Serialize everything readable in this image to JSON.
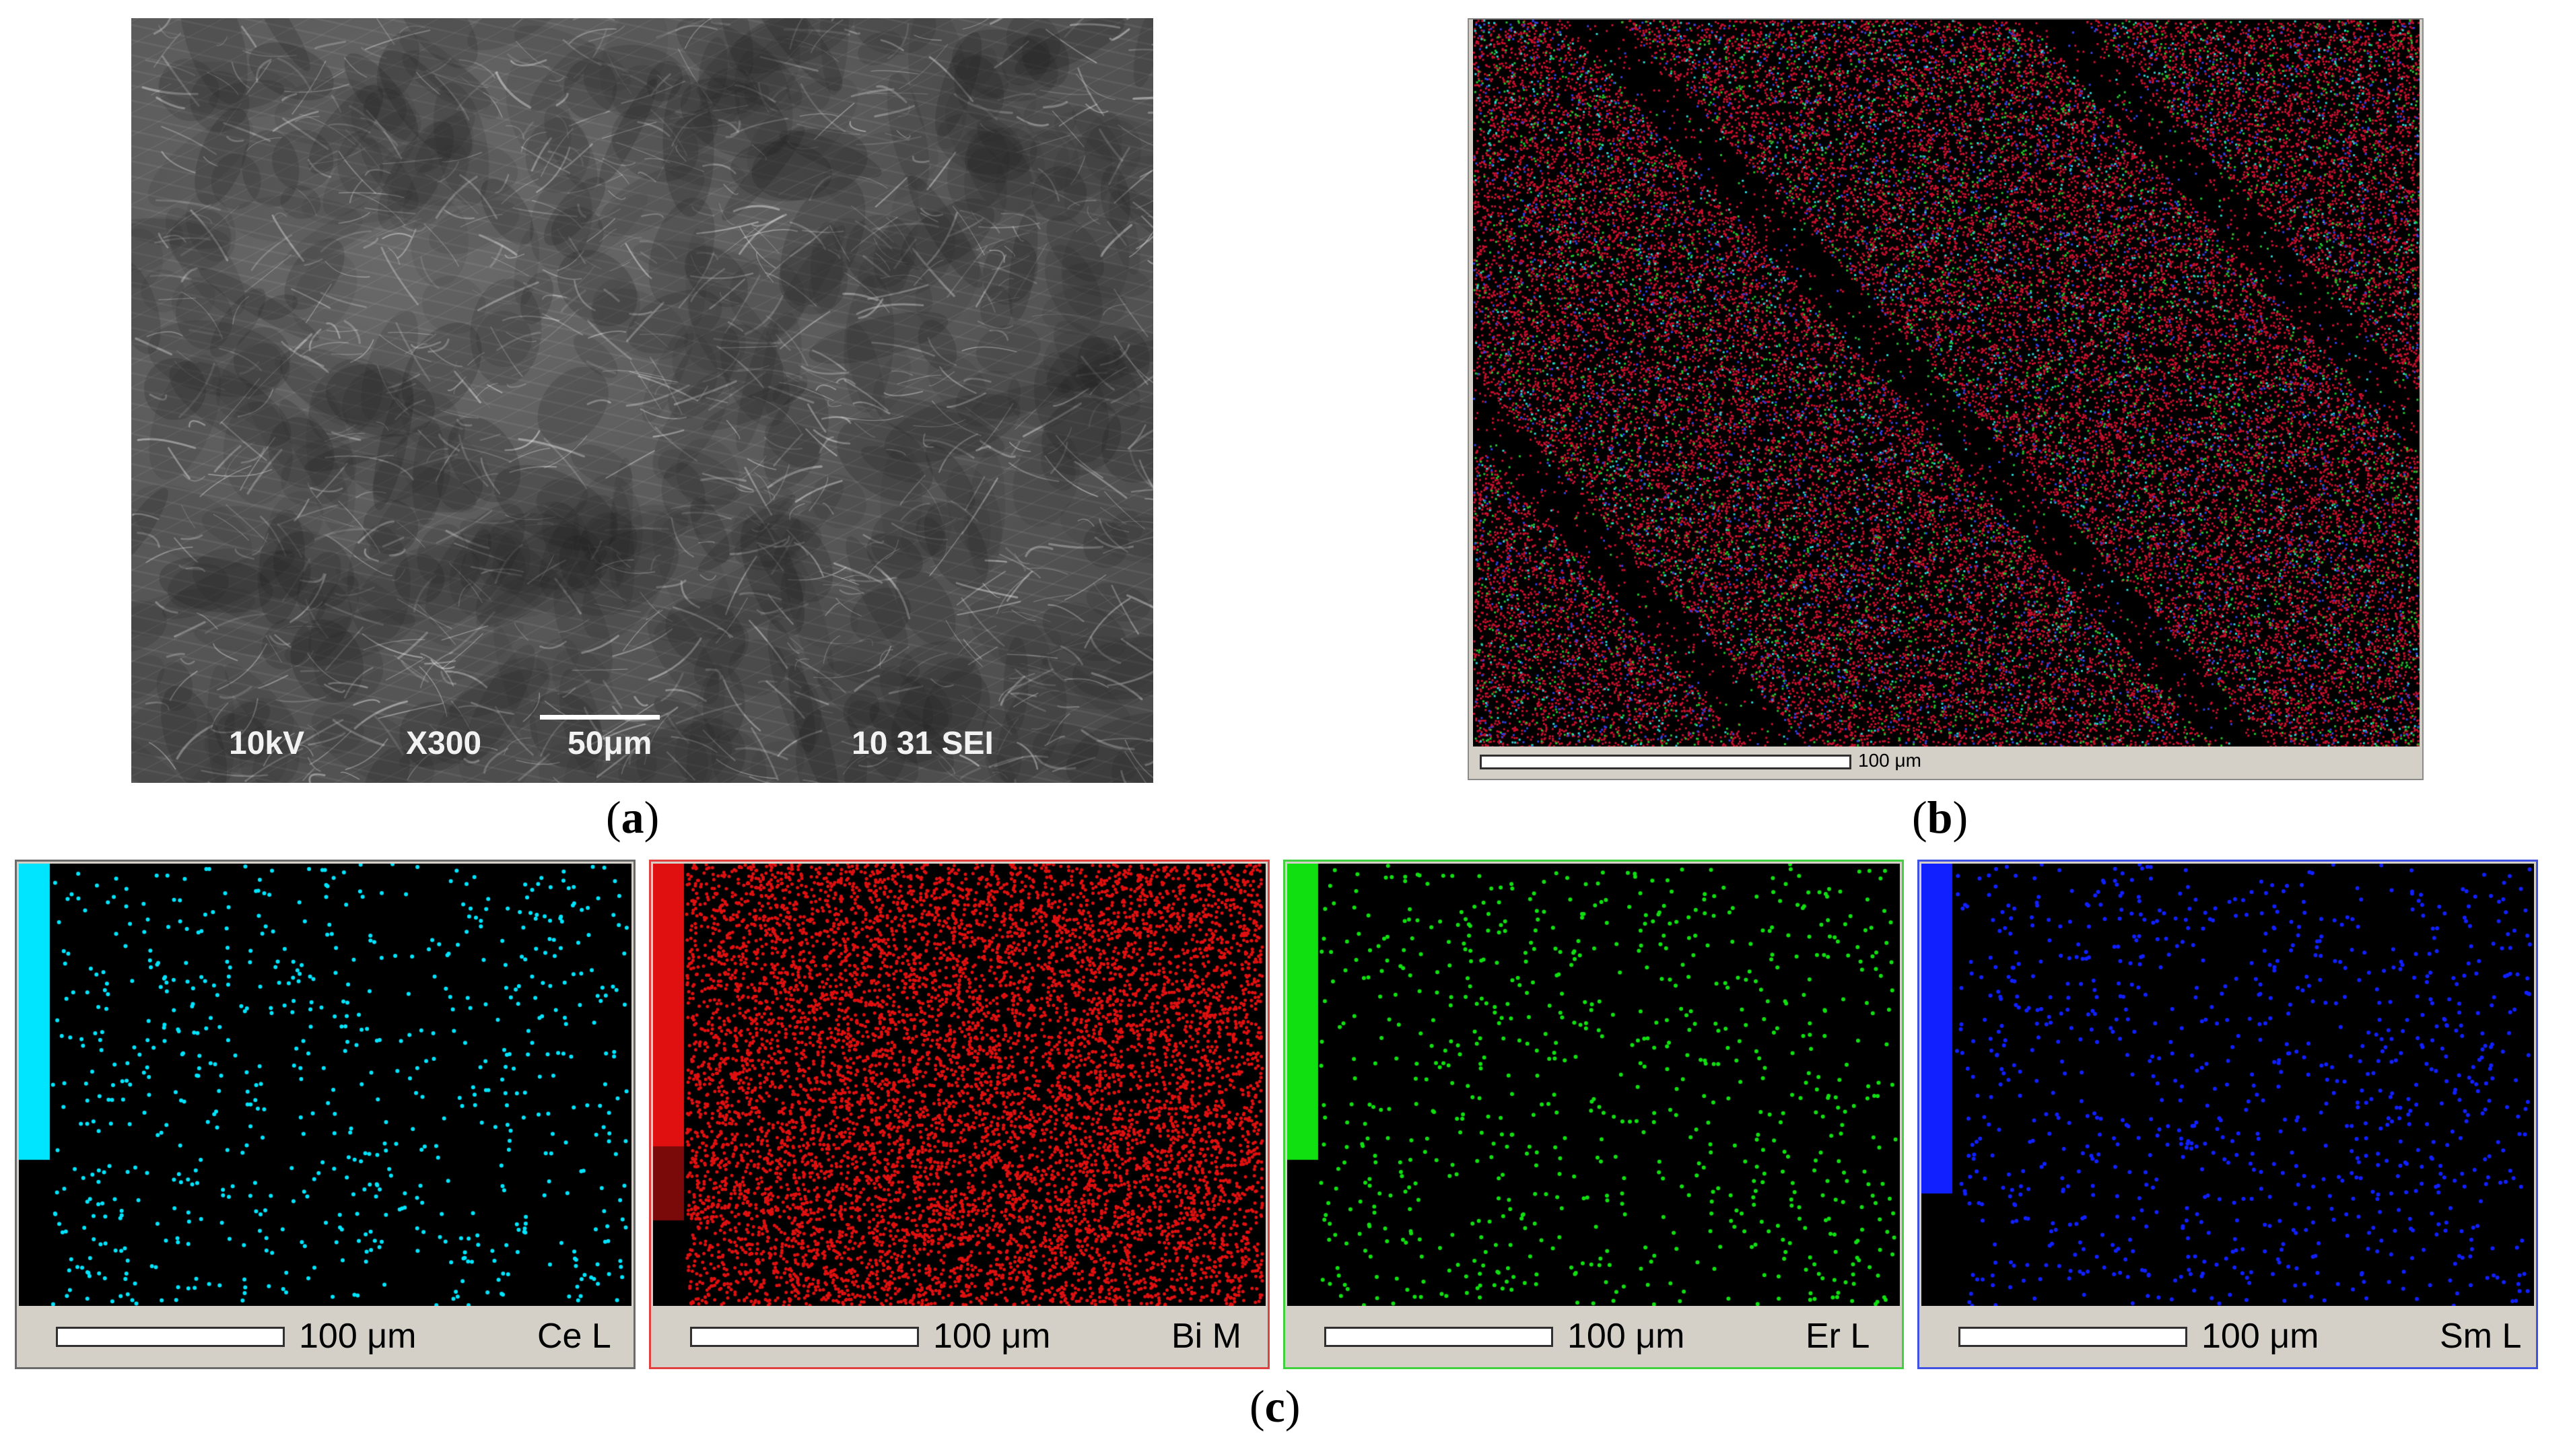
{
  "figure": {
    "panel_a": {
      "caption_letter": "a",
      "labels": {
        "voltage": "10kV",
        "magnification": "X300",
        "scale": "50μm",
        "info": "10 31 SEI"
      }
    },
    "panel_b": {
      "caption_letter": "b",
      "scale": "100 μm",
      "colors": {
        "bg": "#000000",
        "red": "#c8102e",
        "green": "#22c22e",
        "cyan": "#2ad4d4",
        "blue": "#3040e0"
      }
    },
    "panel_c": {
      "caption_letter": "c",
      "maps": [
        {
          "scale": "100 μm",
          "element": "Ce L",
          "color": "#00e5ff",
          "border": "#6a6a6a",
          "dot_count": 700
        },
        {
          "scale": "100 μm",
          "element": "Bi M",
          "color": "#e01010",
          "border": "#e04040",
          "dot_count": 9000
        },
        {
          "scale": "100 μm",
          "element": "Er L",
          "color": "#10e010",
          "border": "#40d040",
          "dot_count": 750
        },
        {
          "scale": "100 μm",
          "element": "Sm L",
          "color": "#1020ff",
          "border": "#4050e0",
          "dot_count": 900
        }
      ]
    }
  }
}
